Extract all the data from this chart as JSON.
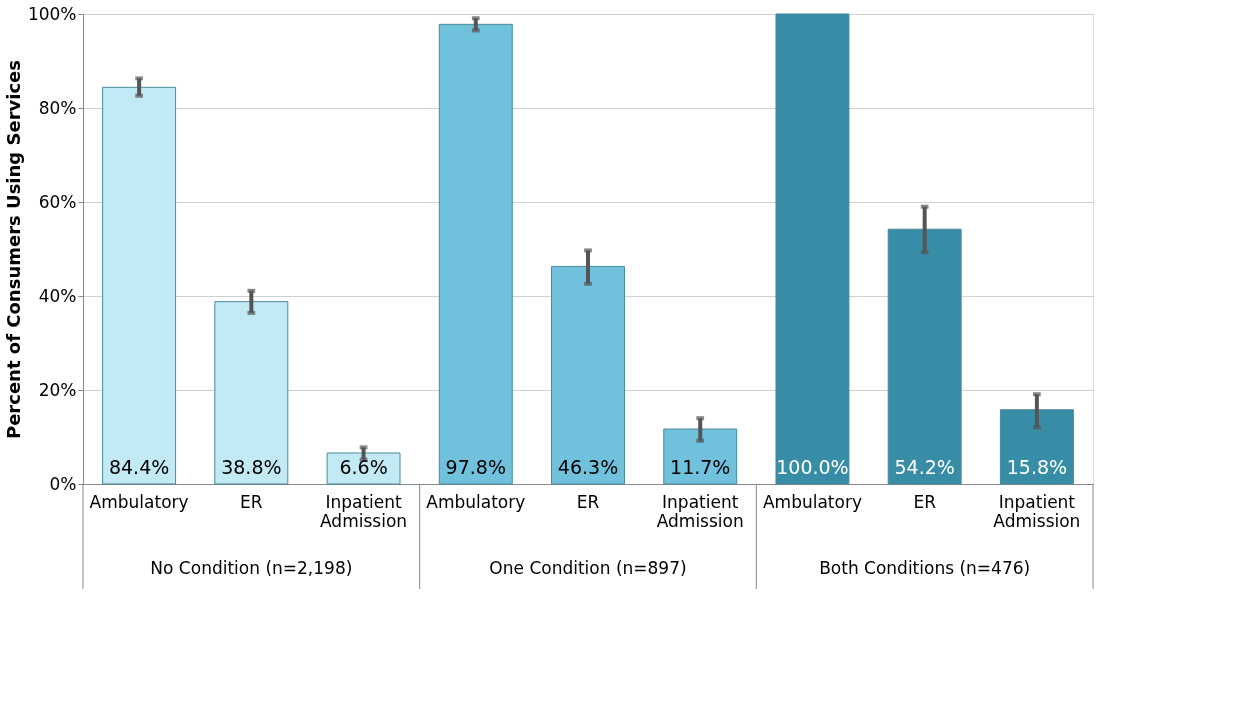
{
  "chart_data": {
    "type": "bar",
    "ylabel": "Percent of Consumers Using Services",
    "categories": [
      "Ambulatory",
      "ER",
      "Inpatient Admission",
      "Ambulatory",
      "ER",
      "Inpatient Admission",
      "Ambulatory",
      "ER",
      "Inpatient Admission"
    ],
    "values": [
      84.4,
      38.8,
      6.6,
      97.8,
      46.3,
      11.7,
      100.0,
      54.2,
      15.8
    ],
    "colors": [
      "#c2eaf4",
      "#c2eaf4",
      "#c2eaf4",
      "#70c1dc",
      "#70c1dc",
      "#70c1dc",
      "#378ca6",
      "#378ca6",
      "#378ca6"
    ],
    "errors": [
      [
        82.6,
        86.3
      ],
      [
        36.4,
        41.1
      ],
      [
        5.2,
        7.8
      ],
      [
        96.5,
        99.1
      ],
      [
        42.6,
        49.7
      ],
      [
        9.2,
        14.0
      ],
      null,
      [
        49.3,
        59.0
      ],
      [
        12.1,
        19.1
      ]
    ],
    "value_labels": [
      "84.4%",
      "38.8%",
      "6.6%",
      "97.8%",
      "46.3%",
      "11.7%",
      "100.0%",
      "54.2%",
      "15.8%"
    ],
    "annotations": [
      "No Condition (n=2,198)",
      "One Condition (n=897)",
      "Both Conditions (n=476)"
    ],
    "ylim": [
      0,
      100
    ],
    "yticks": [
      {
        "value": 0,
        "label": "0%"
      },
      {
        "value": 20,
        "label": "20%"
      },
      {
        "value": 40,
        "label": "40%"
      },
      {
        "value": 60,
        "label": "60%"
      },
      {
        "value": 80,
        "label": "80%"
      },
      {
        "value": 100,
        "label": "100%"
      }
    ],
    "grid": "y"
  }
}
